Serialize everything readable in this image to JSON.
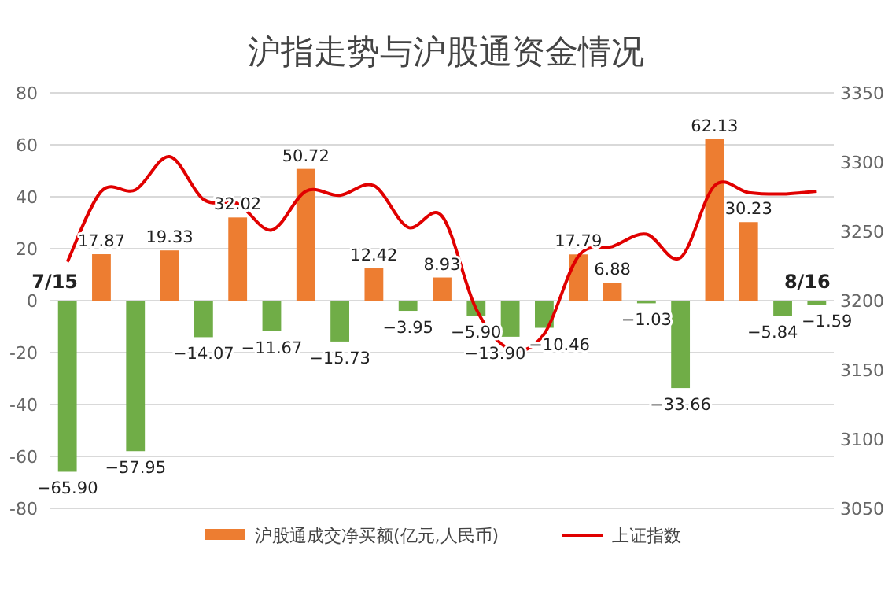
{
  "chart_data": {
    "type": "bar",
    "title": "沪指走势与沪股通资金情况",
    "categories": [
      null,
      null,
      null,
      null,
      null,
      null,
      null,
      null,
      null,
      null,
      null,
      null,
      null,
      null,
      null,
      null,
      null,
      null,
      null,
      null,
      null,
      null,
      null
    ],
    "series": [
      {
        "name": "沪股通成交净买额(亿元,人民币)",
        "color": "#ed7d31",
        "colors": [
          "#70ad47",
          "#ed7d31",
          "#70ad47",
          "#ed7d31",
          "#70ad47",
          "#ed7d31",
          "#70ad47",
          "#ed7d31",
          "#70ad47",
          "#ed7d31",
          "#70ad47",
          "#ed7d31",
          "#70ad47",
          "#70ad47",
          "#70ad47",
          "#ed7d31",
          "#ed7d31",
          "#70ad47",
          "#70ad47",
          "#ed7d31",
          "#ed7d31",
          "#70ad47",
          "#70ad47"
        ],
        "values": [
          -65.9,
          17.87,
          -57.95,
          19.33,
          -14.07,
          32.02,
          -11.67,
          50.72,
          -15.73,
          12.42,
          -3.95,
          8.93,
          -5.9,
          -13.9,
          -10.46,
          17.79,
          6.88,
          -1.03,
          -33.66,
          62.13,
          30.23,
          -5.84,
          -1.59
        ],
        "value_labels": [
          "−65.90",
          "17.87",
          "−57.95",
          "19.33",
          "−14.07",
          "32.02",
          "−11.67",
          "50.72",
          "−15.73",
          "12.42",
          "−3.95",
          "8.93",
          "−5.90",
          "−13.90",
          "−10.46",
          "17.79",
          "6.88",
          "−1.03",
          "−33.66",
          "62.13",
          "30.23",
          "−5.84",
          "−1.59"
        ]
      },
      {
        "name": "上证指数",
        "type": "line",
        "axis": "y2",
        "color": "#e00000",
        "values": [
          3228,
          3279,
          3280,
          3304,
          3273,
          3270,
          3251,
          3279,
          3276,
          3283,
          3253,
          3261,
          3194,
          3165,
          3176,
          3232,
          3239,
          3248,
          3231,
          3283,
          3278,
          3277,
          3279
        ]
      }
    ],
    "ylim": [
      -80,
      80
    ],
    "yticks": [
      -80,
      -60,
      -40,
      -20,
      0,
      20,
      40,
      60,
      80
    ],
    "y2lim": [
      3050,
      3350
    ],
    "y2ticks": [
      3050,
      3100,
      3150,
      3200,
      3250,
      3300,
      3350
    ],
    "grid": "y",
    "legend": "bottom",
    "annotations": [
      "7/15",
      "8/16"
    ]
  }
}
